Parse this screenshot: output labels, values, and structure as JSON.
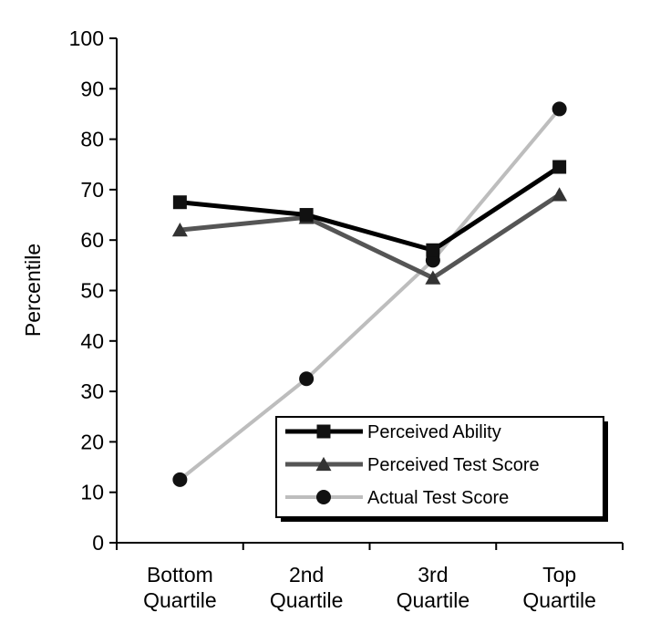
{
  "chart_data": {
    "type": "line",
    "title": "",
    "xlabel": "",
    "ylabel": "Percentile",
    "ylim": [
      0,
      100
    ],
    "yticks": [
      "0",
      "10",
      "20",
      "30",
      "40",
      "50",
      "60",
      "70",
      "80",
      "90",
      "100"
    ],
    "categories": [
      [
        "Bottom",
        "Quartile"
      ],
      [
        "2nd",
        "Quartile"
      ],
      [
        "3rd",
        "Quartile"
      ],
      [
        "Top",
        "Quartile"
      ]
    ],
    "grid": false,
    "legend_position": "bottom-right",
    "series": [
      {
        "name": "Perceived Ability",
        "values": [
          67.5,
          65,
          58,
          74.5
        ],
        "marker": "square",
        "color": "#000000"
      },
      {
        "name": "Perceived Test Score",
        "values": [
          62,
          64.5,
          52.5,
          69
        ],
        "marker": "triangle",
        "color": "#555555"
      },
      {
        "name": "Actual Test Score",
        "values": [
          12.5,
          32.5,
          56,
          86
        ],
        "marker": "circle",
        "color": "#bdbdbd"
      }
    ]
  }
}
